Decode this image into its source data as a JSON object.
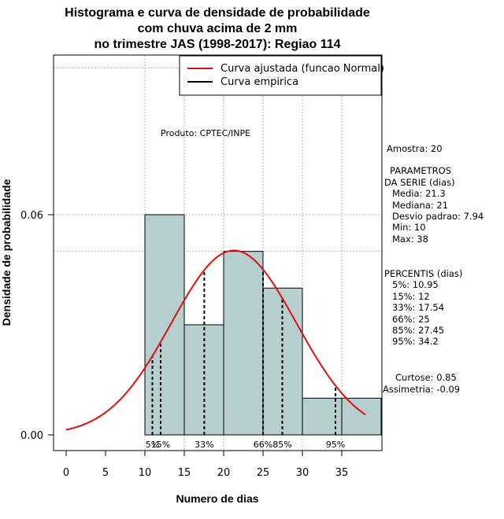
{
  "chart_data": {
    "type": "histogram",
    "title_lines": [
      "Histograma e curva de densidade de probabilidade",
      "com chuva acima de 2 mm",
      "no trimestre JAS (1998-2017): Regiao 114"
    ],
    "xlabel": "Numero de dias",
    "ylabel": "Densidade de probabilidade",
    "xlim": [
      -2,
      40
    ],
    "ylim": [
      -0.004,
      0.1
    ],
    "x_ticks": [
      0,
      5,
      10,
      15,
      20,
      25,
      30,
      35
    ],
    "y_ticks": [
      0.0,
      0.06
    ],
    "y_tick_labels": [
      "0.00",
      "0.06"
    ],
    "grid_x": [
      10,
      15,
      20,
      25,
      30,
      35
    ],
    "grid_y": [
      0.06,
      0.05,
      0.1
    ],
    "bins": [
      {
        "x0": 10,
        "x1": 15,
        "density": 0.06
      },
      {
        "x0": 15,
        "x1": 20,
        "density": 0.03
      },
      {
        "x0": 20,
        "x1": 25,
        "density": 0.05
      },
      {
        "x0": 25,
        "x1": 30,
        "density": 0.04
      },
      {
        "x0": 30,
        "x1": 35,
        "density": 0.01
      },
      {
        "x0": 35,
        "x1": 40,
        "density": 0.01
      }
    ],
    "bar_fill": "#b6cece",
    "normal_curve": {
      "mean": 21.3,
      "sd": 7.94,
      "x_from": 0,
      "x_to": 38,
      "color": "#e01010"
    },
    "percentile_lines": [
      {
        "label": "5%",
        "value": 10.95
      },
      {
        "label": "15%",
        "value": 12
      },
      {
        "label": "33%",
        "value": 17.54
      },
      {
        "label": "66%",
        "value": 25
      },
      {
        "label": "85%",
        "value": 27.45
      },
      {
        "label": "95%",
        "value": 34.2
      }
    ],
    "legend": {
      "position": "top-right",
      "entries": [
        {
          "label": "Curva ajustada (funcao Normal)",
          "color": "#e01010"
        },
        {
          "label": "Curva empirica",
          "color": "#000000"
        }
      ]
    },
    "annotation": "Produto: CPTEC/INPE"
  },
  "side_panel": {
    "amostra": "Amostra: 20",
    "params_header_1": "PARAMETROS",
    "params_header_2": "DA SERIE (dias)",
    "media": "Media: 21.3",
    "mediana": "Mediana: 21",
    "desvio": "Desvio padrao: 7.94",
    "min": "Min: 10",
    "max": "Max: 38",
    "percentis_header": "PERCENTIS (dias)",
    "p5": "5%: 10.95",
    "p15": "15%: 12",
    "p33": "33%: 17.54",
    "p66": "66%: 25",
    "p85": "85%: 27.45",
    "p95": "95%: 34.2",
    "curtose": "Curtose: 0.85",
    "assimetria": "Assimetria: -0.09"
  }
}
